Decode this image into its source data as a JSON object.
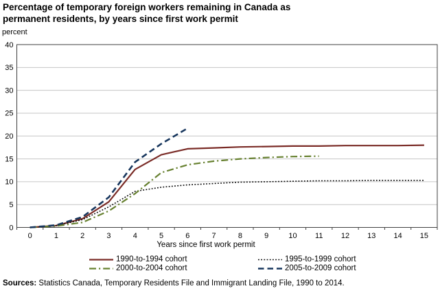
{
  "chart_data": {
    "type": "line",
    "title_lines": [
      "Percentage of temporary foreign workers remaining in Canada as",
      "permanent residents, by years since first work permit"
    ],
    "ylabel": "percent",
    "xlabel": "Years since first work permit",
    "x": [
      0,
      1,
      2,
      3,
      4,
      5,
      6,
      7,
      8,
      9,
      10,
      11,
      12,
      13,
      14,
      15
    ],
    "x_tick_labels": [
      "0",
      "1",
      "2",
      "3",
      "4",
      "5",
      "6",
      "7",
      "8",
      "9",
      "10",
      "11",
      "12",
      "13",
      "14",
      "15"
    ],
    "y_ticks": [
      0,
      5,
      10,
      15,
      20,
      25,
      30,
      35,
      40
    ],
    "ylim": [
      0,
      40
    ],
    "grid": "horizontal",
    "legend_position": "bottom",
    "colors": {
      "gridline": "#c6c6c6",
      "plot_border": "#3f3f3f",
      "text": "#000000"
    },
    "series": [
      {
        "name": "1990-to-1994 cohort",
        "color": "#7a2b26",
        "dash": "solid",
        "width": 2.2,
        "values": [
          0,
          0.4,
          1.9,
          5.6,
          12.7,
          15.9,
          17.2,
          17.4,
          17.6,
          17.7,
          17.8,
          17.8,
          17.9,
          17.9,
          17.9,
          18.0
        ]
      },
      {
        "name": "1995-to-1999 cohort",
        "color": "#000000",
        "dash": "dotted",
        "width": 1.6,
        "values": [
          0,
          0.4,
          1.7,
          4.5,
          7.9,
          8.8,
          9.3,
          9.6,
          9.9,
          10.0,
          10.1,
          10.2,
          10.2,
          10.3,
          10.3,
          10.3
        ]
      },
      {
        "name": "2000-to-2004 cohort",
        "color": "#66802f",
        "dash": "dashdot",
        "width": 2.2,
        "values": [
          0,
          0.3,
          1.1,
          3.6,
          7.4,
          12.0,
          13.7,
          14.5,
          15.0,
          15.3,
          15.5,
          15.6
        ]
      },
      {
        "name": "2005-to-2009 cohort",
        "color": "#17365d",
        "dash": "dashed",
        "width": 2.6,
        "values": [
          0,
          0.5,
          2.3,
          6.6,
          14.3,
          18.3,
          21.7
        ]
      }
    ]
  },
  "sources": {
    "label": "Sources:",
    "text": " Statistics Canada, Temporary Residents File and Immigrant Landing File, 1990 to 2014."
  }
}
